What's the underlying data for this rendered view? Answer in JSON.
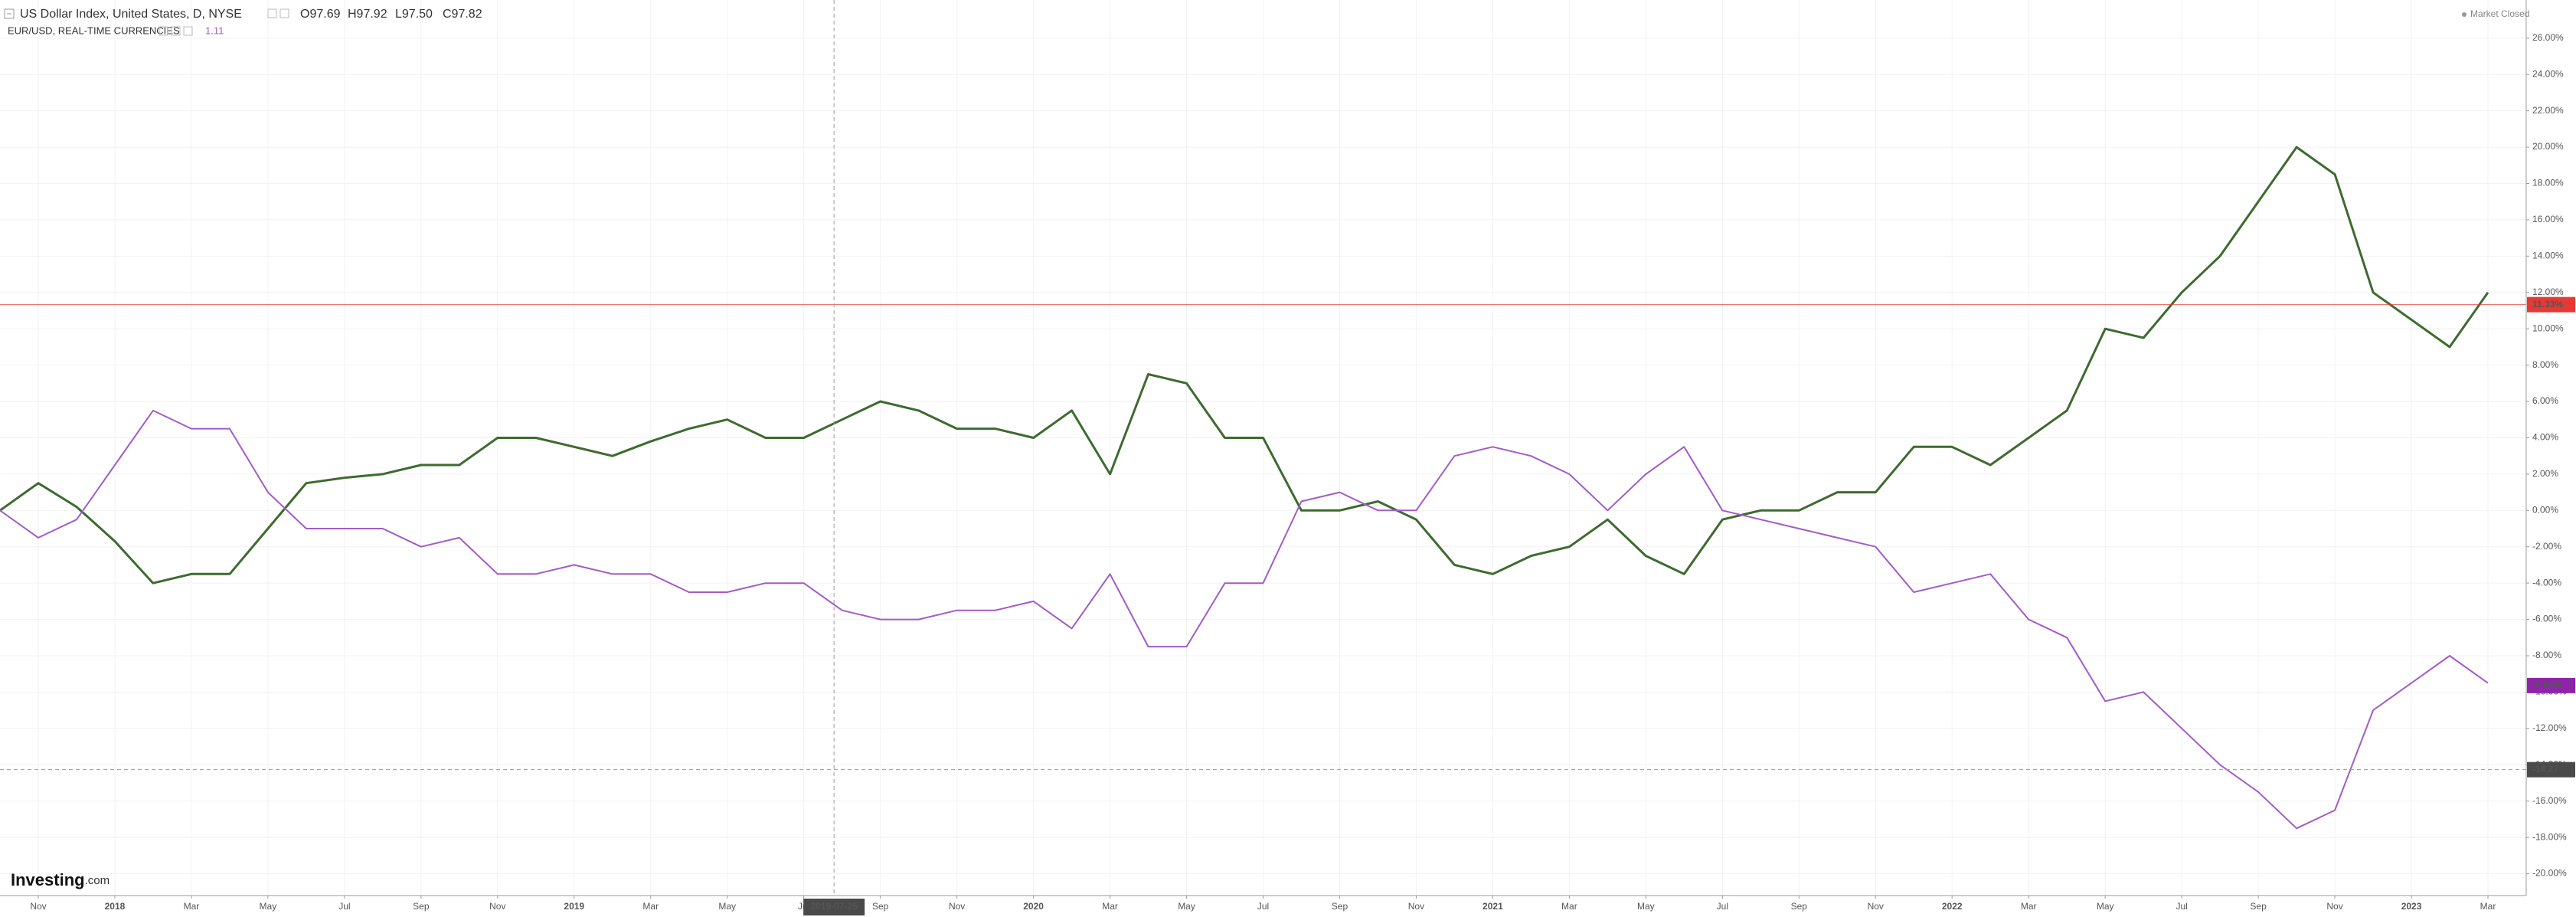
{
  "chart_data": {
    "type": "line",
    "status": "Market Closed",
    "logo": [
      "Investing",
      ".com"
    ],
    "x": [
      "2017-10",
      "2017-11",
      "2017-12",
      "2018-01",
      "2018-02",
      "2018-03",
      "2018-04",
      "2018-05",
      "2018-06",
      "2018-07",
      "2018-08",
      "2018-09",
      "2018-10",
      "2018-11",
      "2018-12",
      "2019-01",
      "2019-02",
      "2019-03",
      "2019-04",
      "2019-05",
      "2019-06",
      "2019-07",
      "2019-08",
      "2019-09",
      "2019-10",
      "2019-11",
      "2019-12",
      "2020-01",
      "2020-02",
      "2020-03",
      "2020-04",
      "2020-05",
      "2020-06",
      "2020-07",
      "2020-08",
      "2020-09",
      "2020-10",
      "2020-11",
      "2020-12",
      "2021-01",
      "2021-02",
      "2021-03",
      "2021-04",
      "2021-05",
      "2021-06",
      "2021-07",
      "2021-08",
      "2021-09",
      "2021-10",
      "2021-11",
      "2021-12",
      "2022-01",
      "2022-02",
      "2022-03",
      "2022-04",
      "2022-05",
      "2022-06",
      "2022-07",
      "2022-08",
      "2022-09",
      "2022-10",
      "2022-11",
      "2022-12",
      "2023-01",
      "2023-02",
      "2023-03"
    ],
    "series": [
      {
        "name": "US Dollar Index, United States, D, NYSE",
        "color": "#3d6b2f",
        "ohlc": [
          "O97.69",
          "H97.92",
          "L97.50",
          "C97.82"
        ],
        "price_line": {
          "value": 11.33,
          "label": "11.33%"
        },
        "price_line_color": "#e53935",
        "values": [
          0,
          1.5,
          0.2,
          -1.7,
          -4,
          -3.5,
          -3.5,
          -1,
          1.5,
          1.8,
          2,
          2.5,
          2.5,
          4,
          4,
          3.5,
          3,
          3.8,
          4.5,
          5,
          4,
          4,
          5,
          6,
          5.5,
          4.5,
          4.5,
          4,
          5.5,
          2,
          7.5,
          7,
          4,
          4,
          0,
          0,
          0.5,
          -0.5,
          -3,
          -3.5,
          -2.5,
          -2,
          -0.5,
          -2.5,
          -3.5,
          -0.5,
          0,
          0,
          1,
          1,
          3.5,
          3.5,
          2.5,
          4,
          5.5,
          10,
          9.5,
          12,
          14,
          17,
          20,
          18.5,
          12,
          10.5,
          9,
          12
        ]
      },
      {
        "name": "EUR/USD, REAL-TIME CURRENCIES",
        "color": "#a25bc8",
        "last_price": 1.11,
        "price_label": {
          "value": -9.64,
          "label": "-9.64%"
        },
        "price_label_color": "#8e24aa",
        "values": [
          0,
          -1.5,
          -0.5,
          2.5,
          5.5,
          4.5,
          4.5,
          1,
          -1,
          -1,
          -1,
          -2,
          -1.5,
          -3.5,
          -3.5,
          -3,
          -3.5,
          -3.5,
          -4.5,
          -4.5,
          -4,
          -4,
          -5.5,
          -6,
          -6,
          -5.5,
          -5.5,
          -5,
          -6.5,
          -3.5,
          -7.5,
          -7.5,
          -4,
          -4,
          0.5,
          1,
          0,
          0,
          3,
          3.5,
          3,
          2,
          0,
          2,
          3.5,
          0,
          -0.5,
          -1,
          -1.5,
          -2,
          -4.5,
          -4,
          -3.5,
          -6,
          -7,
          -10.5,
          -10,
          -12,
          -14,
          -15.5,
          -17.5,
          -16.5,
          -11,
          -9.5,
          -8,
          -9.5
        ]
      }
    ],
    "crosshair": {
      "x": "2019-07-25",
      "y": -14.27
    },
    "xlim": [
      "2017-10",
      "2023-04"
    ],
    "xticks": [
      {
        "value": "2017-11",
        "label": "Nov"
      },
      {
        "value": "2018-01",
        "label": "2018"
      },
      {
        "value": "2018-03",
        "label": "Mar"
      },
      {
        "value": "2018-05",
        "label": "May"
      },
      {
        "value": "2018-07",
        "label": "Jul"
      },
      {
        "value": "2018-09",
        "label": "Sep"
      },
      {
        "value": "2018-11",
        "label": "Nov"
      },
      {
        "value": "2019-01",
        "label": "2019"
      },
      {
        "value": "2019-03",
        "label": "Mar"
      },
      {
        "value": "2019-05",
        "label": "May"
      },
      {
        "value": "2019-07",
        "label": "Jul"
      },
      {
        "value": "2019-09",
        "label": "Sep"
      },
      {
        "value": "2019-11",
        "label": "Nov"
      },
      {
        "value": "2020-01",
        "label": "2020"
      },
      {
        "value": "2020-03",
        "label": "Mar"
      },
      {
        "value": "2020-05",
        "label": "May"
      },
      {
        "value": "2020-07",
        "label": "Jul"
      },
      {
        "value": "2020-09",
        "label": "Sep"
      },
      {
        "value": "2020-11",
        "label": "Nov"
      },
      {
        "value": "2021-01",
        "label": "2021"
      },
      {
        "value": "2021-03",
        "label": "Mar"
      },
      {
        "value": "2021-05",
        "label": "May"
      },
      {
        "value": "2021-07",
        "label": "Jul"
      },
      {
        "value": "2021-09",
        "label": "Sep"
      },
      {
        "value": "2021-11",
        "label": "Nov"
      },
      {
        "value": "2022-01",
        "label": "2022"
      },
      {
        "value": "2022-03",
        "label": "Mar"
      },
      {
        "value": "2022-05",
        "label": "May"
      },
      {
        "value": "2022-07",
        "label": "Jul"
      },
      {
        "value": "2022-09",
        "label": "Sep"
      },
      {
        "value": "2022-11",
        "label": "Nov"
      },
      {
        "value": "2023-01",
        "label": "2023"
      },
      {
        "value": "2023-03",
        "label": "Mar"
      }
    ],
    "ylim": [
      -21.2,
      28.1
    ],
    "yticks": [
      {
        "value": -20,
        "label": "-20.00%"
      },
      {
        "value": -18,
        "label": "-18.00%"
      },
      {
        "value": -16,
        "label": "-16.00%"
      },
      {
        "value": -14,
        "label": "-14.00%"
      },
      {
        "value": -12,
        "label": "-12.00%"
      },
      {
        "value": -10,
        "label": "-10.00%"
      },
      {
        "value": -8,
        "label": "-8.00%"
      },
      {
        "value": -6,
        "label": "-6.00%"
      },
      {
        "value": -4,
        "label": "-4.00%"
      },
      {
        "value": -2,
        "label": "-2.00%"
      },
      {
        "value": 0,
        "label": "0.00%"
      },
      {
        "value": 2,
        "label": "2.00%"
      },
      {
        "value": 4,
        "label": "4.00%"
      },
      {
        "value": 6,
        "label": "6.00%"
      },
      {
        "value": 8,
        "label": "8.00%"
      },
      {
        "value": 10,
        "label": "10.00%"
      },
      {
        "value": 12,
        "label": "12.00%"
      },
      {
        "value": 14,
        "label": "14.00%"
      },
      {
        "value": 16,
        "label": "16.00%"
      },
      {
        "value": 18,
        "label": "18.00%"
      },
      {
        "value": 20,
        "label": "20.00%"
      },
      {
        "value": 22,
        "label": "22.00%"
      },
      {
        "value": 24,
        "label": "24.00%"
      },
      {
        "value": 26,
        "label": "26.00%"
      }
    ],
    "grid": true
  }
}
